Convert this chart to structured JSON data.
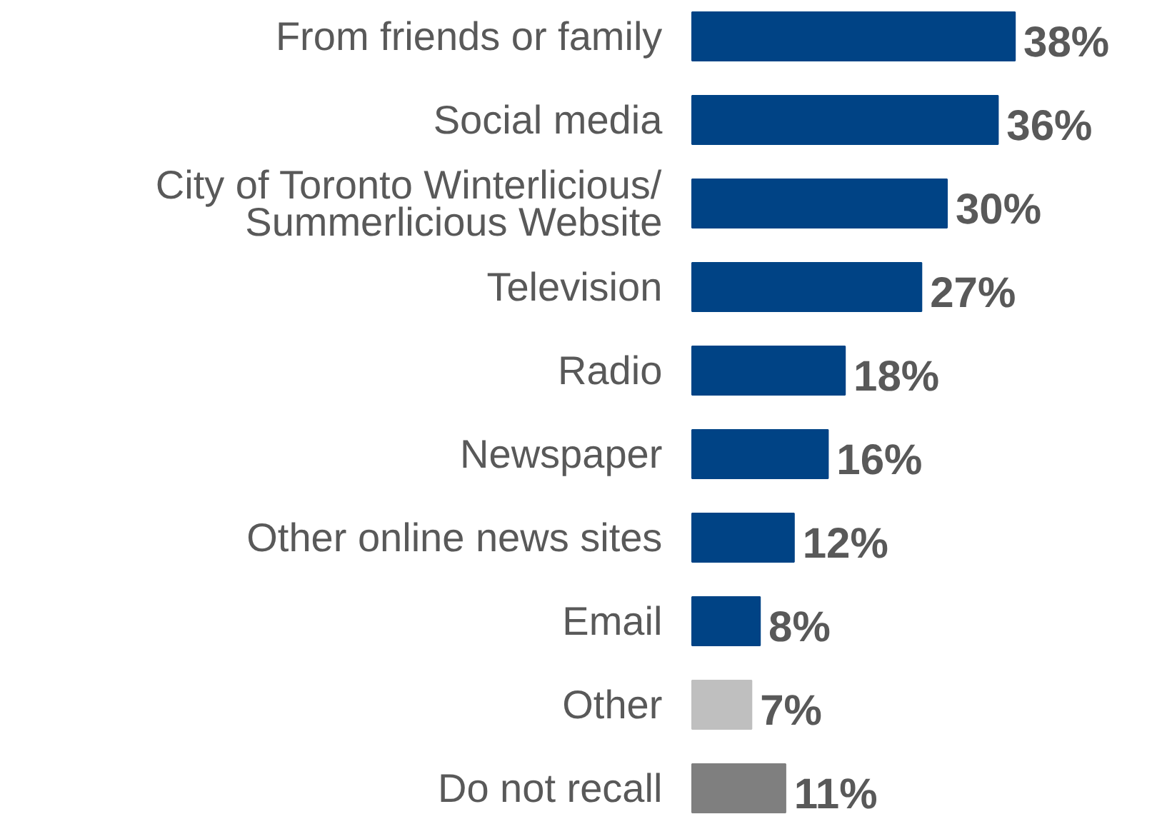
{
  "chart_data": {
    "type": "bar",
    "orientation": "horizontal",
    "categories": [
      "From friends or family",
      "Social media",
      "City of Toronto Winterlicious/\nSummerlicious Website",
      "Television",
      "Radio",
      "Newspaper",
      "Other online news sites",
      "Email",
      "Other",
      "Do not recall"
    ],
    "values": [
      38,
      36,
      30,
      27,
      18,
      16,
      12,
      8,
      7,
      11
    ],
    "value_labels": [
      "38%",
      "36%",
      "30%",
      "27%",
      "18%",
      "16%",
      "12%",
      "8%",
      "7%",
      "11%"
    ],
    "colors": [
      "#004385",
      "#004385",
      "#004385",
      "#004385",
      "#004385",
      "#004385",
      "#004385",
      "#004385",
      "#bfbfbf",
      "#7f7f7f"
    ]
  }
}
